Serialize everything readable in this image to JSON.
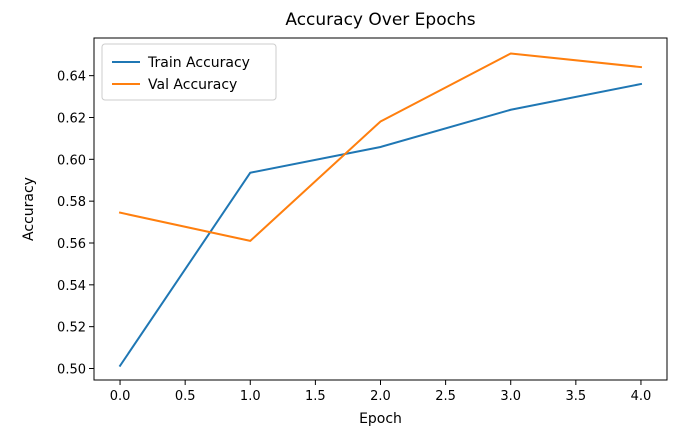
{
  "chart_data": {
    "type": "line",
    "title": "Accuracy Over Epochs",
    "xlabel": "Epoch",
    "ylabel": "Accuracy",
    "xlim": [
      -0.2,
      4.2
    ],
    "ylim": [
      0.4945,
      0.658
    ],
    "xticks": [
      "0.0",
      "0.5",
      "1.0",
      "1.5",
      "2.0",
      "2.5",
      "3.0",
      "3.5",
      "4.0"
    ],
    "yticks": [
      "0.50",
      "0.52",
      "0.54",
      "0.56",
      "0.58",
      "0.60",
      "0.62",
      "0.64"
    ],
    "grid": false,
    "legend_position": "top-left",
    "x": [
      0,
      1,
      2,
      3,
      4
    ],
    "series": [
      {
        "name": "Train Accuracy",
        "color": "#1f77b4",
        "values": [
          0.5013,
          0.5936,
          0.6059,
          0.6237,
          0.636
        ]
      },
      {
        "name": "Val Accuracy",
        "color": "#ff7f0e",
        "values": [
          0.5745,
          0.561,
          0.6181,
          0.6506,
          0.6441
        ]
      }
    ]
  }
}
